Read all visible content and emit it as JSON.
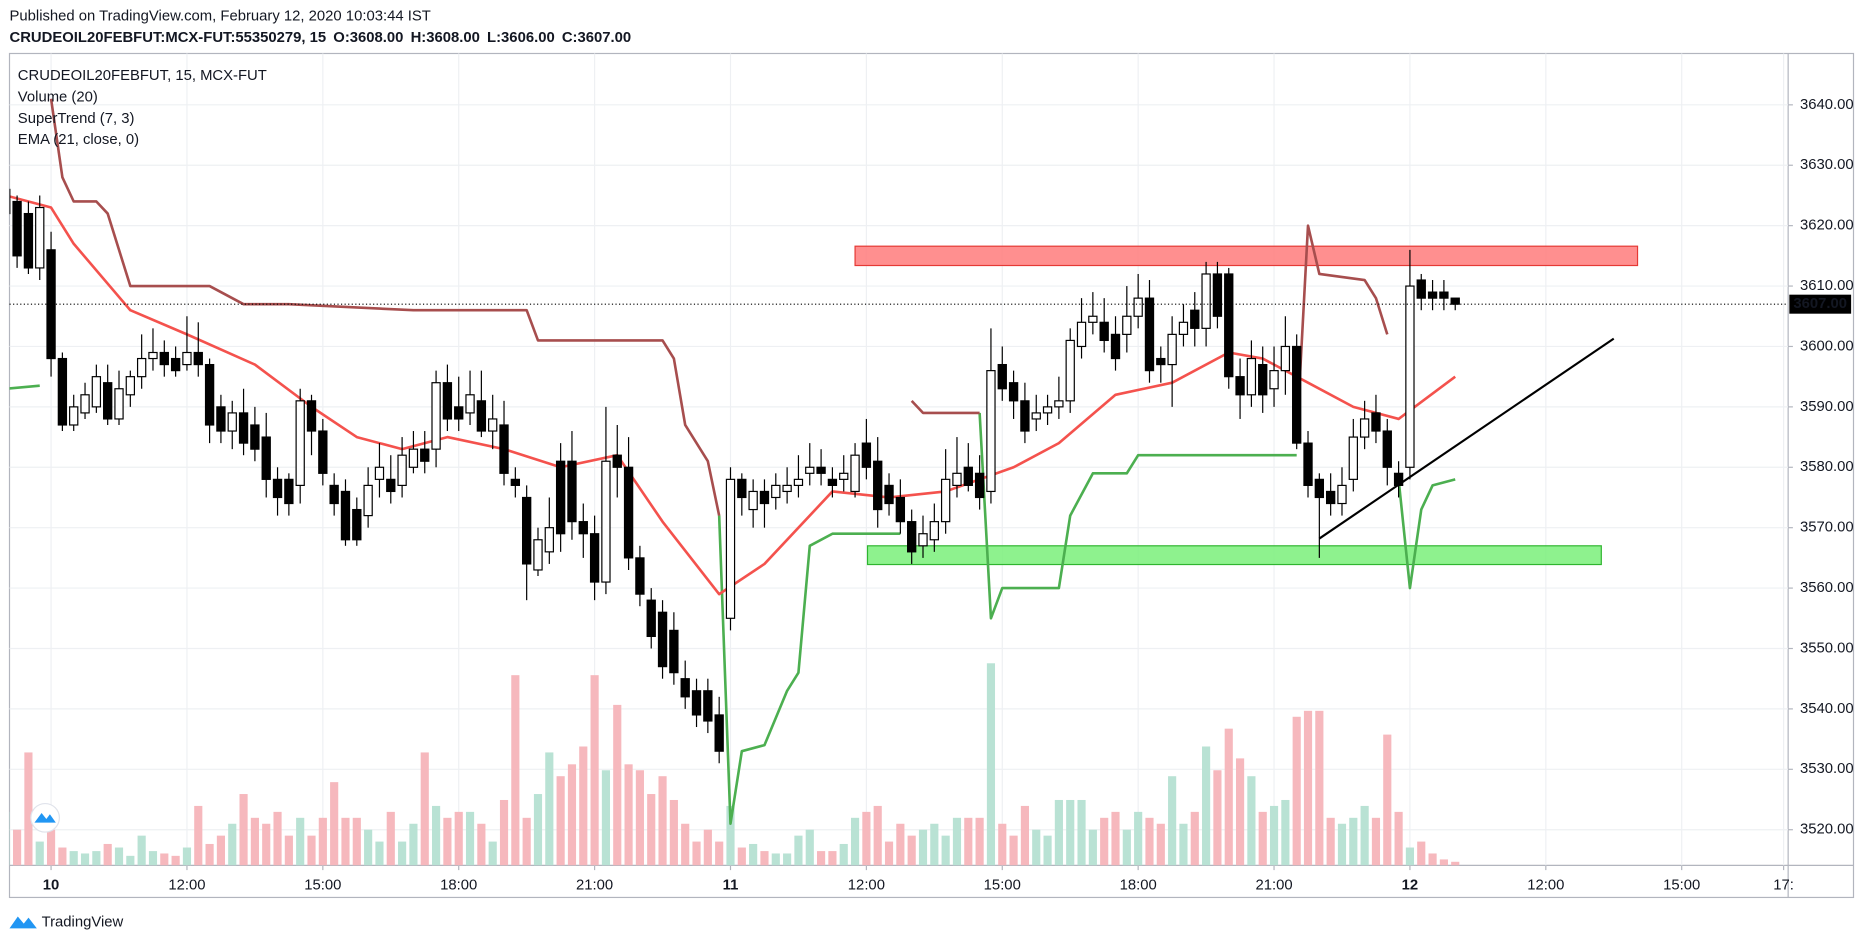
{
  "header": {
    "published": "Published on TradingView.com, February 12, 2020 10:03:44 IST",
    "symbol": "CRUDEOIL20FEBFUT:MCX-FUT:55350279, 15",
    "ohlc": [
      {
        "label": "O:",
        "value": "3608.00"
      },
      {
        "label": "H:",
        "value": "3608.00"
      },
      {
        "label": "L:",
        "value": "3606.00"
      },
      {
        "label": "C:",
        "value": "3607.00"
      }
    ]
  },
  "chart_data": {
    "type": "candlestick",
    "title": "CRUDEOIL20FEBFUT, 15, MCX-FUT",
    "indicators": [
      "Volume (20)",
      "SuperTrend (7, 3)",
      "EMA (21, close, 0)"
    ],
    "x": [
      0,
      1,
      2,
      3,
      4,
      5,
      6,
      7,
      8,
      9,
      10,
      11,
      12,
      13,
      14,
      15,
      16,
      17,
      18,
      19,
      20,
      21,
      22,
      23,
      24,
      25,
      26,
      27,
      28,
      29,
      30,
      31,
      32,
      33,
      34,
      35,
      36,
      37,
      38,
      39,
      40,
      41,
      42,
      43,
      44,
      45,
      46,
      47,
      48,
      49,
      50,
      51,
      52,
      53,
      54,
      55,
      56,
      57,
      58,
      59,
      60,
      61,
      62,
      63,
      64,
      65,
      66,
      67,
      68,
      69,
      70,
      71,
      72,
      73,
      74,
      75,
      76,
      77,
      78,
      79,
      80,
      81,
      82,
      83,
      84,
      85,
      86,
      87,
      88,
      89,
      90,
      91,
      92,
      93,
      94,
      95,
      96,
      97,
      98,
      99,
      100,
      101,
      102,
      103,
      104,
      105,
      106,
      107,
      108,
      109,
      110,
      111,
      112,
      113,
      114,
      115,
      116,
      117,
      118,
      119,
      120,
      121,
      122,
      123,
      124,
      125,
      126,
      127,
      128
    ],
    "open": [
      3622,
      3624,
      3622,
      3613,
      3616,
      3598,
      3587,
      3589,
      3590,
      3594,
      3588,
      3592,
      3595,
      3598,
      3599,
      3598,
      3597,
      3599,
      3597,
      3590,
      3586,
      3589,
      3587,
      3585,
      3578,
      3578,
      3577,
      3591,
      3586,
      3577,
      3576,
      3573,
      3572,
      3578,
      3578,
      3577,
      3580,
      3583,
      3583,
      3594,
      3590,
      3589,
      3591,
      3586,
      3587,
      3578,
      3575,
      3563,
      3566,
      3581,
      3581,
      3571,
      3569,
      3561,
      3582,
      3580,
      3565,
      3558,
      3556,
      3553,
      3545,
      3543,
      3543,
      3539,
      3555,
      3578,
      3573,
      3576,
      3575,
      3576,
      3577,
      3579,
      3580,
      3578,
      3578,
      3576,
      3584,
      3581,
      3577,
      3575,
      3571,
      3567,
      3568,
      3571,
      3577,
      3580,
      3579,
      3576,
      3597,
      3594,
      3591,
      3588,
      3589,
      3590,
      3591,
      3600,
      3604,
      3604,
      3602,
      3602,
      3605,
      3608,
      3598,
      3597,
      3602,
      3606,
      3603,
      3612,
      3612,
      3595,
      3592,
      3597,
      3593,
      3596,
      3600,
      3584,
      3578,
      3576,
      3574,
      3578,
      3585,
      3589,
      3586,
      3579,
      3580,
      3611,
      3609,
      3609,
      3608
    ],
    "high": [
      3627,
      3625,
      3624,
      3625,
      3619,
      3599,
      3592,
      3594,
      3597,
      3597,
      3596,
      3596,
      3602,
      3603,
      3601,
      3600,
      3605,
      3604,
      3598,
      3592,
      3591,
      3593,
      3590,
      3589,
      3580,
      3579,
      3593,
      3592,
      3588,
      3579,
      3578,
      3575,
      3580,
      3584,
      3582,
      3585,
      3586,
      3586,
      3596,
      3597,
      3595,
      3596,
      3596,
      3592,
      3591,
      3580,
      3577,
      3570,
      3575,
      3584,
      3586,
      3574,
      3572,
      3590,
      3587,
      3585,
      3567,
      3560,
      3558,
      3556,
      3548,
      3545,
      3545,
      3542,
      3580,
      3579,
      3578,
      3578,
      3579,
      3580,
      3582,
      3584,
      3583,
      3580,
      3582,
      3584,
      3588,
      3585,
      3579,
      3578,
      3573,
      3572,
      3574,
      3583,
      3585,
      3584,
      3582,
      3603,
      3600,
      3596,
      3594,
      3592,
      3592,
      3595,
      3603,
      3608,
      3609,
      3608,
      3605,
      3610,
      3612,
      3611,
      3600,
      3605,
      3607,
      3609,
      3614,
      3614,
      3613,
      3598,
      3601,
      3600,
      3600,
      3605,
      3602,
      3586,
      3579,
      3579,
      3580,
      3588,
      3591,
      3592,
      3588,
      3581,
      3616,
      3612,
      3611,
      3611,
      3608
    ],
    "low": [
      3620,
      3613,
      3612,
      3611,
      3595,
      3586,
      3586,
      3588,
      3589,
      3587,
      3587,
      3590,
      3593,
      3596,
      3595,
      3595,
      3596,
      3595,
      3584,
      3584,
      3583,
      3582,
      3581,
      3575,
      3572,
      3572,
      3574,
      3582,
      3577,
      3572,
      3567,
      3567,
      3570,
      3575,
      3574,
      3575,
      3579,
      3579,
      3580,
      3586,
      3586,
      3587,
      3585,
      3583,
      3577,
      3575,
      3558,
      3562,
      3564,
      3566,
      3568,
      3565,
      3558,
      3559,
      3575,
      3563,
      3557,
      3550,
      3545,
      3544,
      3540,
      3537,
      3536,
      3531,
      3553,
      3572,
      3570,
      3570,
      3573,
      3574,
      3575,
      3577,
      3577,
      3575,
      3576,
      3575,
      3578,
      3570,
      3572,
      3569,
      3564,
      3565,
      3566,
      3569,
      3575,
      3576,
      3573,
      3574,
      3591,
      3588,
      3584,
      3586,
      3587,
      3588,
      3589,
      3598,
      3602,
      3599,
      3596,
      3599,
      3603,
      3594,
      3594,
      3590,
      3600,
      3600,
      3600,
      3603,
      3593,
      3588,
      3590,
      3589,
      3590,
      3592,
      3583,
      3575,
      3565,
      3572,
      3572,
      3576,
      3583,
      3584,
      3577,
      3575,
      3578,
      3606,
      3606,
      3606,
      3606
    ],
    "close": [
      3626,
      3615,
      3613,
      3623,
      3598,
      3587,
      3590,
      3592,
      3595,
      3588,
      3593,
      3595,
      3598,
      3599,
      3597,
      3596,
      3599,
      3597,
      3587,
      3586,
      3589,
      3584,
      3583,
      3578,
      3575,
      3574,
      3591,
      3586,
      3579,
      3574,
      3568,
      3568,
      3577,
      3580,
      3576,
      3582,
      3583,
      3581,
      3594,
      3588,
      3588,
      3592,
      3586,
      3588,
      3579,
      3577,
      3564,
      3568,
      3570,
      3569,
      3571,
      3569,
      3561,
      3581,
      3580,
      3565,
      3559,
      3552,
      3547,
      3546,
      3542,
      3539,
      3538,
      3533,
      3578,
      3575,
      3576,
      3574,
      3577,
      3577,
      3578,
      3580,
      3579,
      3577,
      3579,
      3582,
      3580,
      3573,
      3574,
      3571,
      3566,
      3569,
      3571,
      3578,
      3579,
      3577,
      3575,
      3596,
      3593,
      3591,
      3586,
      3589,
      3590,
      3591,
      3601,
      3604,
      3605,
      3601,
      3598,
      3605,
      3608,
      3596,
      3597,
      3602,
      3604,
      3603,
      3612,
      3605,
      3595,
      3592,
      3598,
      3592,
      3596,
      3600,
      3584,
      3577,
      3575,
      3574,
      3577,
      3585,
      3588,
      3586,
      3580,
      3577,
      3610,
      3608,
      3608,
      3608,
      3607
    ],
    "up_color": "#ffffff",
    "down_color": "#000000",
    "wick_color": "#000000",
    "volume": [
      45,
      30,
      95,
      20,
      30,
      15,
      12,
      10,
      12,
      18,
      15,
      8,
      25,
      12,
      10,
      8,
      15,
      50,
      18,
      25,
      35,
      60,
      40,
      35,
      45,
      25,
      40,
      25,
      40,
      70,
      40,
      40,
      30,
      20,
      45,
      20,
      35,
      95,
      50,
      40,
      45,
      45,
      35,
      20,
      55,
      160,
      40,
      60,
      95,
      75,
      85,
      100,
      160,
      80,
      135,
      85,
      80,
      60,
      75,
      55,
      35,
      20,
      30,
      20,
      50,
      15,
      18,
      12,
      10,
      10,
      25,
      30,
      12,
      12,
      18,
      40,
      45,
      50,
      20,
      35,
      25,
      30,
      35,
      25,
      40,
      40,
      40,
      170,
      35,
      25,
      50,
      30,
      25,
      55,
      55,
      55,
      30,
      40,
      45,
      30,
      45,
      40,
      35,
      75,
      35,
      45,
      100,
      80,
      115,
      90,
      75,
      45,
      50,
      55,
      125,
      130,
      130,
      40,
      35,
      40,
      50,
      40,
      110,
      45,
      15,
      20,
      10,
      5,
      3
    ],
    "volume_up_color": "#b9e2d4",
    "volume_down_color": "#f6b8bd",
    "ema": {
      "color": "#f4524d",
      "x": [
        0,
        4,
        6,
        11,
        16,
        22,
        27,
        31,
        35,
        39,
        44,
        49,
        54,
        58,
        63,
        67,
        73,
        78,
        83,
        89,
        93,
        98,
        103,
        108,
        111,
        115,
        119,
        123,
        128
      ],
      "values": [
        3625,
        3623,
        3617,
        3606,
        3602,
        3597,
        3590,
        3585,
        3583,
        3585,
        3583,
        3580,
        3582,
        3571,
        3559,
        3564,
        3576,
        3575,
        3576,
        3580,
        3584,
        3592,
        3594,
        3599,
        3598,
        3594,
        3590,
        3588,
        3595
      ]
    },
    "supertrend": [
      {
        "color": "#4caf50",
        "x": [
          0,
          3,
          4,
          63,
          64,
          65,
          67,
          69,
          70,
          71,
          73,
          79,
          80,
          86,
          87,
          88,
          93,
          94,
          96,
          99,
          100,
          114,
          115,
          123,
          124,
          125,
          126,
          128
        ],
        "values": [
          3593,
          3593.5,
          null,
          3572,
          3521,
          3533,
          3534,
          3543,
          3546,
          3567,
          3569,
          3569,
          null,
          3589,
          3555,
          3560,
          3560,
          3572,
          3579,
          3579,
          3582,
          3582,
          null,
          3578,
          3560,
          3573,
          3577,
          3578
        ]
      },
      {
        "color": "#a74e4e",
        "x": [
          4,
          5,
          6,
          8,
          9,
          11,
          18,
          21,
          25,
          36,
          46,
          47,
          58,
          59,
          60,
          62,
          63,
          64,
          80,
          81,
          86,
          87,
          114,
          115,
          116,
          120,
          121,
          122
        ],
        "values": [
          3641,
          3628,
          3624,
          3624,
          3622,
          3610,
          3610,
          3607,
          3607,
          3606,
          3606,
          3601,
          3601,
          3598,
          3587,
          3581,
          3572,
          null,
          3591,
          3589,
          3589,
          null,
          3585,
          3620,
          3612,
          3611,
          3608,
          3602
        ]
      }
    ],
    "zones": [
      {
        "x": [
          75.0,
          144.1
        ],
        "y": [
          3613.4,
          3616.6
        ],
        "color": "#ff7b7b",
        "border": "#e53935"
      },
      {
        "x": [
          76.1,
          140.9
        ],
        "y": [
          3563.9,
          3567.0
        ],
        "color": "#7af07a",
        "border": "#2fb52f"
      }
    ],
    "trendline": {
      "x": [
        116,
        142
      ],
      "y": [
        3568.2,
        3601.3
      ],
      "color": "#000000"
    },
    "last_price": {
      "value": 3607,
      "label": "3607.00"
    },
    "xlim": [
      0.33,
      157.4
    ],
    "ylim": [
      3514.1,
      3648.5
    ],
    "xticks": [
      {
        "value": 4,
        "label": "10"
      },
      {
        "value": 16,
        "label": "12:00"
      },
      {
        "value": 28,
        "label": "15:00"
      },
      {
        "value": 40,
        "label": "18:00"
      },
      {
        "value": 52,
        "label": "21:00"
      },
      {
        "value": 64,
        "label": "11"
      },
      {
        "value": 76,
        "label": "12:00"
      },
      {
        "value": 88,
        "label": "15:00"
      },
      {
        "value": 100,
        "label": "18:00"
      },
      {
        "value": 112,
        "label": "21:00"
      },
      {
        "value": 124,
        "label": "12"
      },
      {
        "value": 136,
        "label": "12:00"
      },
      {
        "value": 148,
        "label": "15:00"
      },
      {
        "value": 157,
        "label": "17:"
      }
    ],
    "yticks": [
      {
        "value": 3520,
        "label": "3520.00"
      },
      {
        "value": 3530,
        "label": "3530.00"
      },
      {
        "value": 3540,
        "label": "3540.00"
      },
      {
        "value": 3550,
        "label": "3550.00"
      },
      {
        "value": 3560,
        "label": "3560.00"
      },
      {
        "value": 3570,
        "label": "3570.00"
      },
      {
        "value": 3580,
        "label": "3580.00"
      },
      {
        "value": 3590,
        "label": "3590.00"
      },
      {
        "value": 3600,
        "label": "3600.00"
      },
      {
        "value": 3610,
        "label": "3610.00"
      },
      {
        "value": 3620,
        "label": "3620.00"
      },
      {
        "value": 3630,
        "label": "3630.00"
      },
      {
        "value": 3640,
        "label": "3640.00"
      }
    ],
    "grid": true
  },
  "footer": {
    "brand": "TradingView"
  }
}
